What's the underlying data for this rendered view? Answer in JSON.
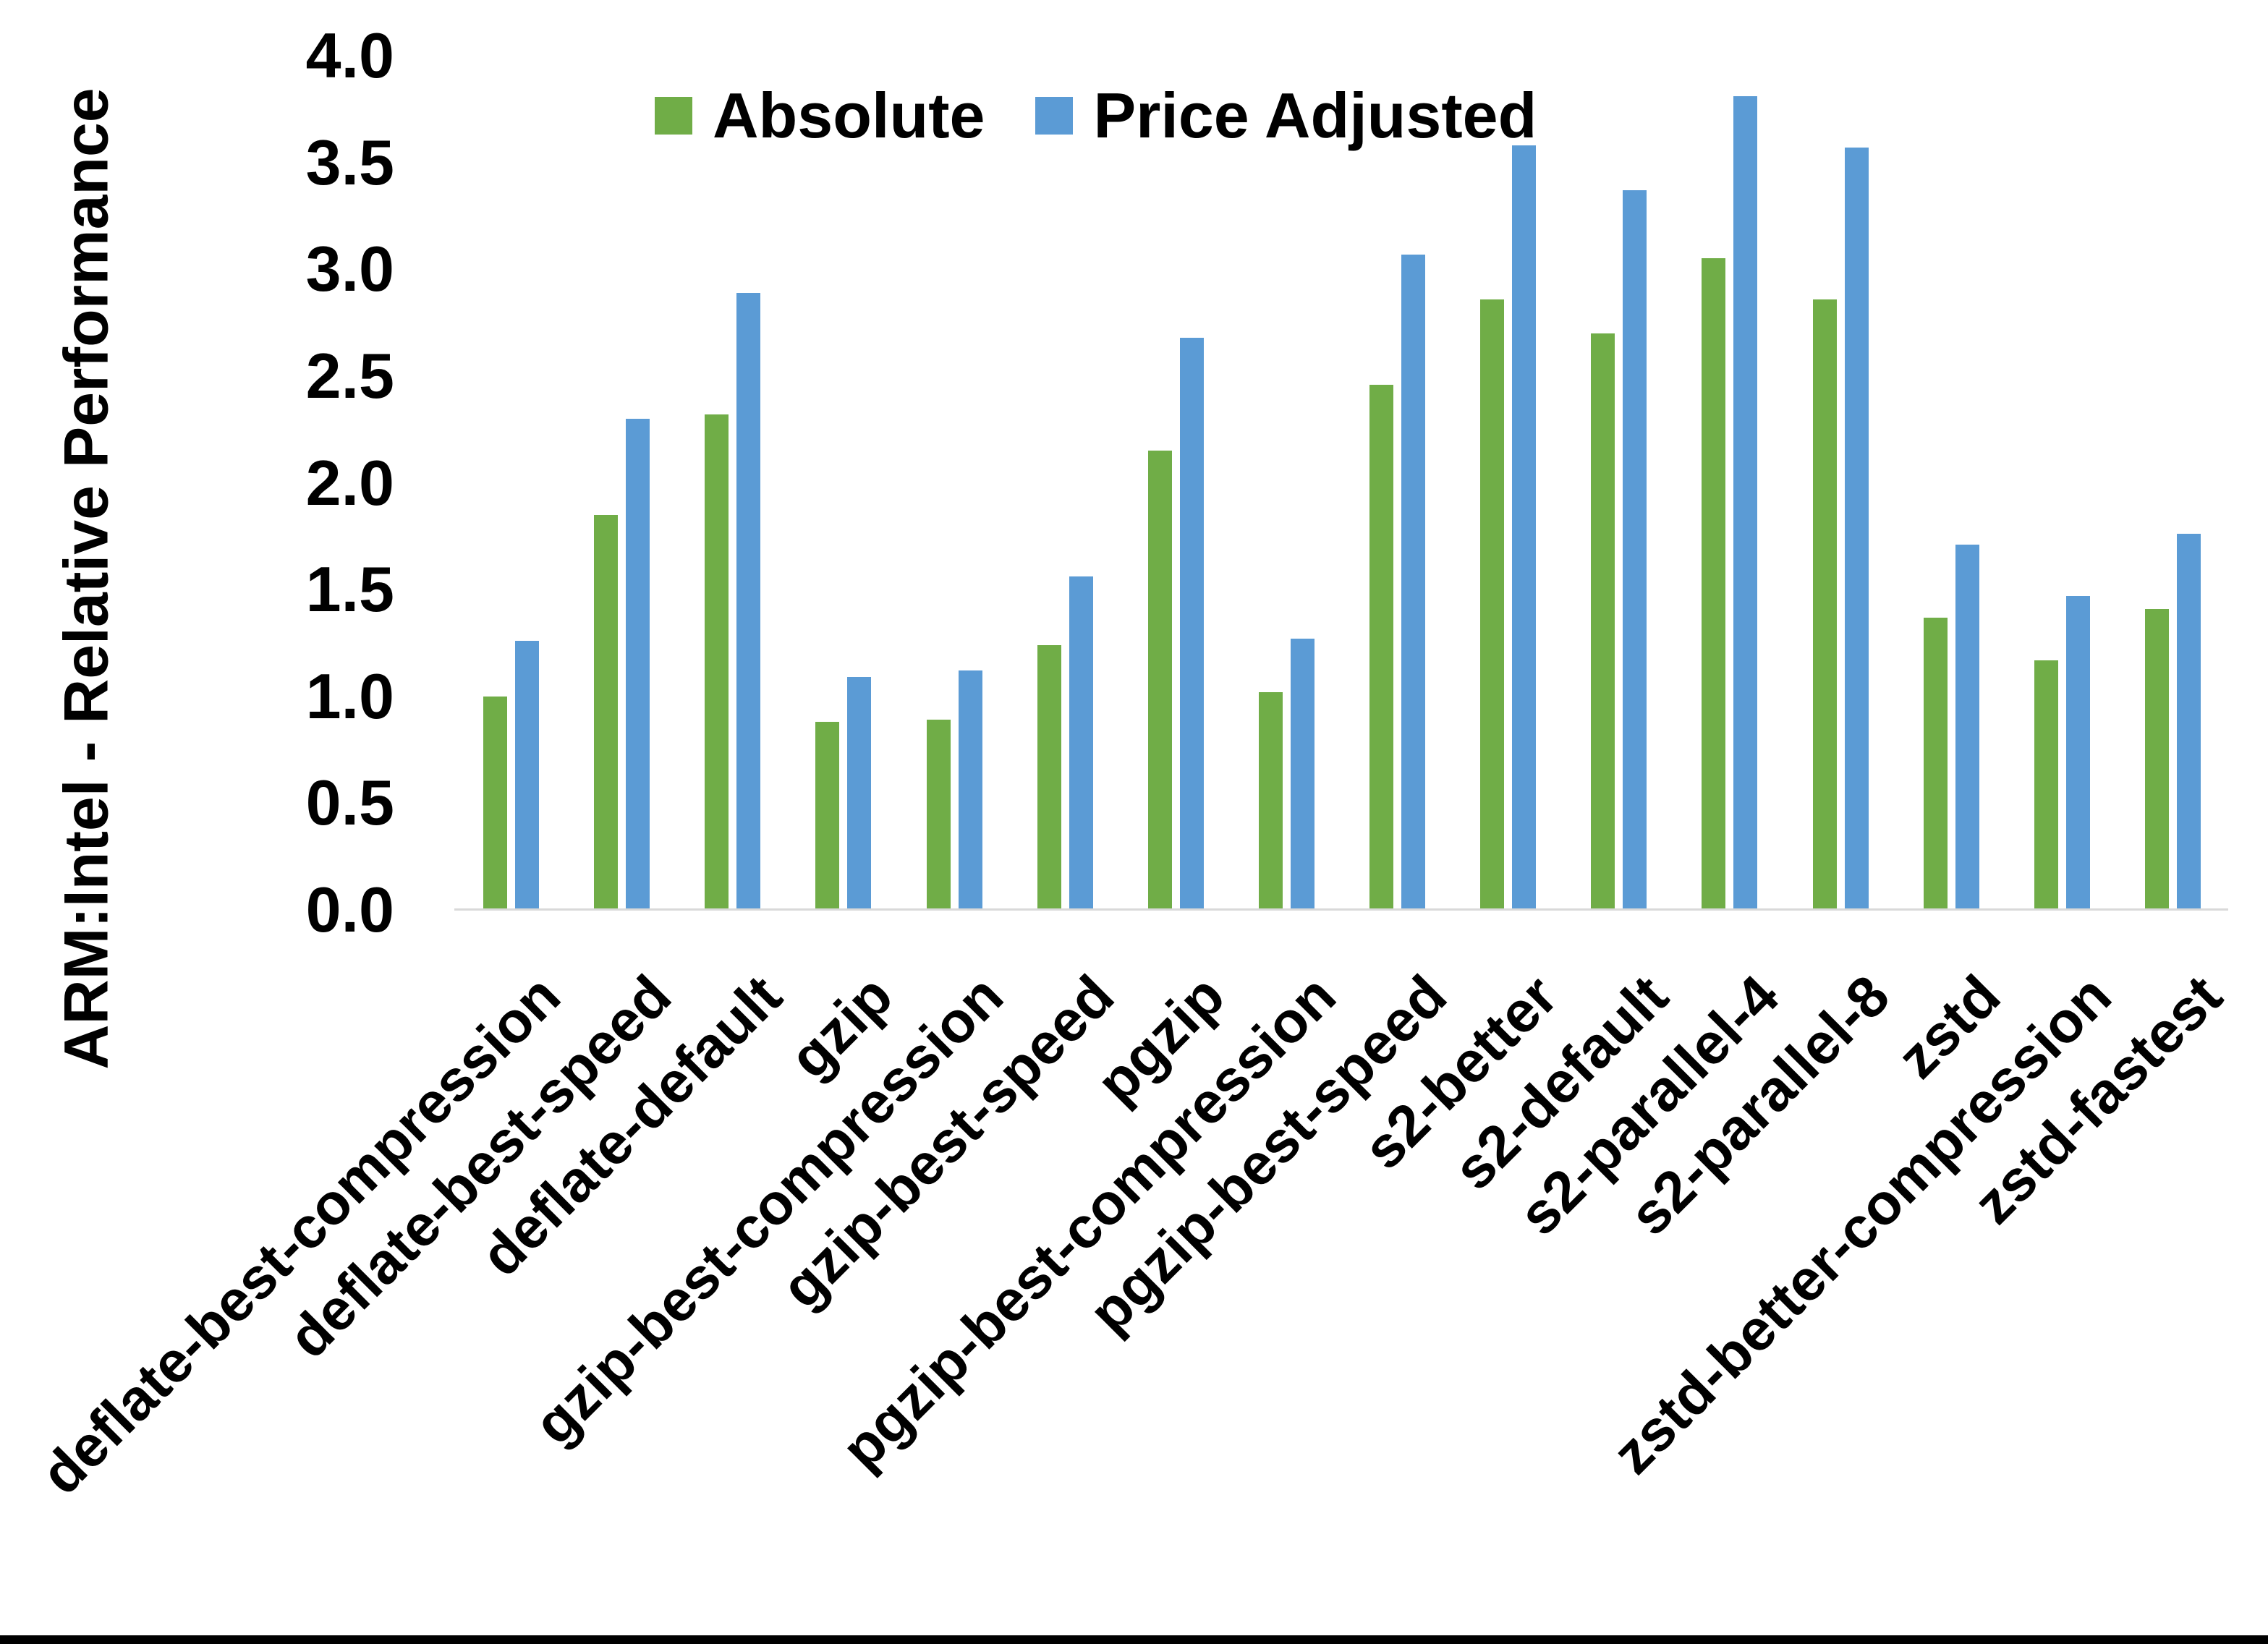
{
  "figure": {
    "background": "#FFFFFF",
    "bottom_border_color": "#000000"
  },
  "chart_data": {
    "type": "bar",
    "title": "",
    "xlabel": "",
    "ylabel": "ARM:Intel - Relative Performance",
    "ylim": [
      0.0,
      4.0
    ],
    "ytick_step": 0.5,
    "ytick_labels": [
      "0.0",
      "0.5",
      "1.0",
      "1.5",
      "2.0",
      "2.5",
      "3.0",
      "3.5",
      "4.0"
    ],
    "grid": false,
    "legend_position": "top-center",
    "axis_line_color": "#D9D9D9",
    "categories": [
      "deflate-best-compression",
      "deflate-best-speed",
      "deflate-default",
      "gzip",
      "gzip-best-compression",
      "gzip-best-speed",
      "pgzip",
      "pgzip-best-compression",
      "pgzip-best-speed",
      "s2-better",
      "s2-default",
      "s2-parallel-4",
      "s2-parallel-8",
      "zstd",
      "zstd-better-compression",
      "zstd-fastest"
    ],
    "series": [
      {
        "name": "Absolute",
        "color": "#70AD47",
        "values": [
          1.0,
          1.85,
          2.32,
          0.88,
          0.89,
          1.24,
          2.15,
          1.02,
          2.46,
          2.86,
          2.7,
          3.05,
          2.86,
          1.37,
          1.17,
          1.41
        ]
      },
      {
        "name": "Price Adjusted",
        "color": "#5B9BD5",
        "values": [
          1.26,
          2.3,
          2.89,
          1.09,
          1.12,
          1.56,
          2.68,
          1.27,
          3.07,
          3.58,
          3.37,
          3.81,
          3.57,
          1.71,
          1.47,
          1.76
        ]
      }
    ]
  }
}
